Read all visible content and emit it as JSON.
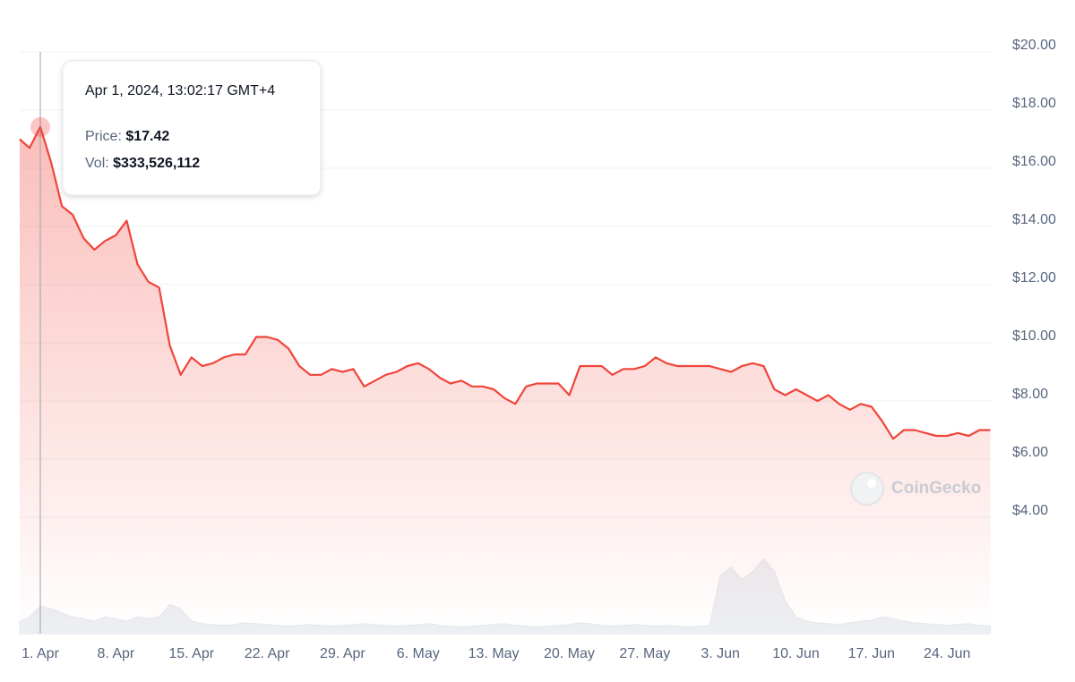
{
  "chart_data": {
    "type": "line",
    "categories": [
      null,
      null,
      "1. Apr",
      null,
      null,
      null,
      null,
      null,
      null,
      "8. Apr",
      null,
      null,
      null,
      null,
      null,
      null,
      "15. Apr",
      null,
      null,
      null,
      null,
      null,
      null,
      "22. Apr",
      null,
      null,
      null,
      null,
      null,
      null,
      "29. Apr",
      null,
      null,
      null,
      null,
      null,
      null,
      "6. May",
      null,
      null,
      null,
      null,
      null,
      null,
      "13. May",
      null,
      null,
      null,
      null,
      null,
      null,
      "20. May",
      null,
      null,
      null,
      null,
      null,
      null,
      "27. May",
      null,
      null,
      null,
      null,
      null,
      null,
      "3. Jun",
      null,
      null,
      null,
      null,
      null,
      null,
      "10. Jun",
      null,
      null,
      null,
      null,
      null,
      null,
      "17. Jun",
      null,
      null,
      null,
      null,
      null,
      null,
      "24. Jun",
      null,
      null,
      null,
      null
    ],
    "series": [
      {
        "name": "Price",
        "color": "#f0453a",
        "values": [
          17.0,
          16.7,
          17.42,
          16.2,
          14.7,
          14.4,
          13.6,
          13.2,
          13.5,
          13.7,
          14.2,
          12.7,
          12.1,
          11.9,
          9.9,
          8.9,
          9.5,
          9.2,
          9.3,
          9.5,
          9.6,
          9.6,
          10.2,
          10.2,
          10.1,
          9.8,
          9.2,
          8.9,
          8.9,
          9.1,
          9.0,
          9.1,
          8.5,
          8.7,
          8.9,
          9.0,
          9.2,
          9.3,
          9.1,
          8.8,
          8.6,
          8.7,
          8.5,
          8.5,
          8.4,
          8.1,
          7.9,
          8.5,
          8.6,
          8.6,
          8.6,
          8.2,
          9.2,
          9.2,
          9.2,
          8.9,
          9.1,
          9.1,
          9.2,
          9.5,
          9.3,
          9.2,
          9.2,
          9.2,
          9.2,
          9.1,
          9.0,
          9.2,
          9.3,
          9.2,
          8.4,
          8.2,
          8.4,
          8.2,
          8.0,
          8.2,
          7.9,
          7.7,
          7.9,
          7.8,
          7.3,
          6.7,
          7.0,
          7.0,
          6.9,
          6.8,
          6.8,
          6.9,
          6.8,
          7.0,
          7.0
        ]
      },
      {
        "name": "Vol",
        "color": "#eceff3",
        "axis": "y2",
        "values": [
          150000000,
          200000000,
          333526112,
          300000000,
          250000000,
          200000000,
          180000000,
          150000000,
          200000000,
          180000000,
          150000000,
          200000000,
          180000000,
          200000000,
          350000000,
          300000000,
          150000000,
          120000000,
          110000000,
          100000000,
          110000000,
          130000000,
          120000000,
          110000000,
          100000000,
          90000000,
          100000000,
          110000000,
          100000000,
          90000000,
          100000000,
          110000000,
          120000000,
          110000000,
          100000000,
          90000000,
          100000000,
          110000000,
          120000000,
          100000000,
          90000000,
          80000000,
          90000000,
          100000000,
          110000000,
          120000000,
          100000000,
          90000000,
          80000000,
          90000000,
          100000000,
          110000000,
          130000000,
          120000000,
          100000000,
          90000000,
          100000000,
          110000000,
          100000000,
          90000000,
          100000000,
          90000000,
          80000000,
          90000000,
          100000000,
          700000000,
          800000000,
          650000000,
          750000000,
          900000000,
          750000000,
          400000000,
          200000000,
          150000000,
          130000000,
          120000000,
          110000000,
          130000000,
          150000000,
          160000000,
          200000000,
          180000000,
          150000000,
          130000000,
          120000000,
          110000000,
          100000000,
          110000000,
          120000000,
          100000000,
          90000000
        ]
      }
    ],
    "ylim": [
      0,
      20
    ],
    "yticks": [
      {
        "value": 4,
        "label": "$4.00"
      },
      {
        "value": 6,
        "label": "$6.00"
      },
      {
        "value": 8,
        "label": "$8.00"
      },
      {
        "value": 10,
        "label": "$10.00"
      },
      {
        "value": 12,
        "label": "$12.00"
      },
      {
        "value": 14,
        "label": "$14.00"
      },
      {
        "value": 16,
        "label": "$16.00"
      },
      {
        "value": 18,
        "label": "$18.00"
      },
      {
        "value": 20,
        "label": "$20.00"
      }
    ],
    "y2lim": [
      0,
      7000000000
    ],
    "grid": true,
    "tooltip": {
      "title": "Apr 1, 2024, 13:02:17 GMT+4",
      "price_label": "Price:",
      "price": "$17.42",
      "vol_label": "Vol:",
      "vol": "$333,526,112",
      "index": 2
    },
    "watermark": "CoinGecko"
  }
}
